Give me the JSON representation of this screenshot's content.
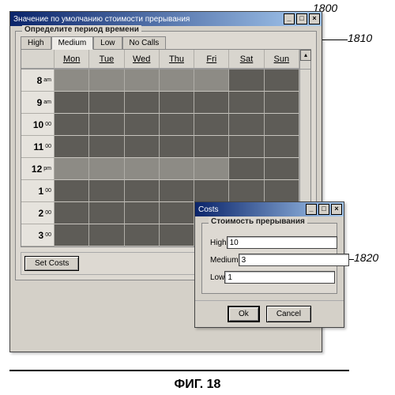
{
  "callouts": {
    "main": "1800",
    "group": "1810",
    "dialog": "1820"
  },
  "figure_caption": "ФИГ. 18",
  "main_window": {
    "title": "Значение по умолчанию стоимости прерывания",
    "min_label": "_",
    "max_label": "□",
    "close_label": "×",
    "group_title": "Определите период времени",
    "tabs": [
      "High",
      "Medium",
      "Low",
      "No Calls"
    ],
    "active_tab_index": 1,
    "days": [
      "Mon",
      "Tue",
      "Wed",
      "Thu",
      "Fri",
      "Sat",
      "Sun"
    ],
    "time_slots": [
      {
        "hr": "8",
        "mer": "am"
      },
      {
        "hr": "9",
        "mer": "am"
      },
      {
        "hr": "10",
        "mer": "00"
      },
      {
        "hr": "11",
        "mer": "00"
      },
      {
        "hr": "12",
        "mer": "pm"
      },
      {
        "hr": "1",
        "mer": "00"
      },
      {
        "hr": "2",
        "mer": "00"
      },
      {
        "hr": "3",
        "mer": "00"
      }
    ],
    "dark_pattern": {
      "weekday_dark_rows": [
        1,
        2,
        3,
        5,
        6,
        7
      ],
      "weekend_light_rows": []
    },
    "set_costs_button": "Set Costs"
  },
  "costs_dialog": {
    "title": "Costs",
    "min_label": "_",
    "max_label": "□",
    "close_label": "×",
    "group_title": "Стоимость прерывания",
    "rows": [
      {
        "label": "High",
        "value": "10"
      },
      {
        "label": "Medium",
        "value": "3"
      },
      {
        "label": "Low",
        "value": "1"
      }
    ],
    "ok_label": "Ok",
    "cancel_label": "Cancel"
  },
  "colors": {
    "cell_light": "#8d8b85",
    "cell_dark": "#5e5c57"
  }
}
